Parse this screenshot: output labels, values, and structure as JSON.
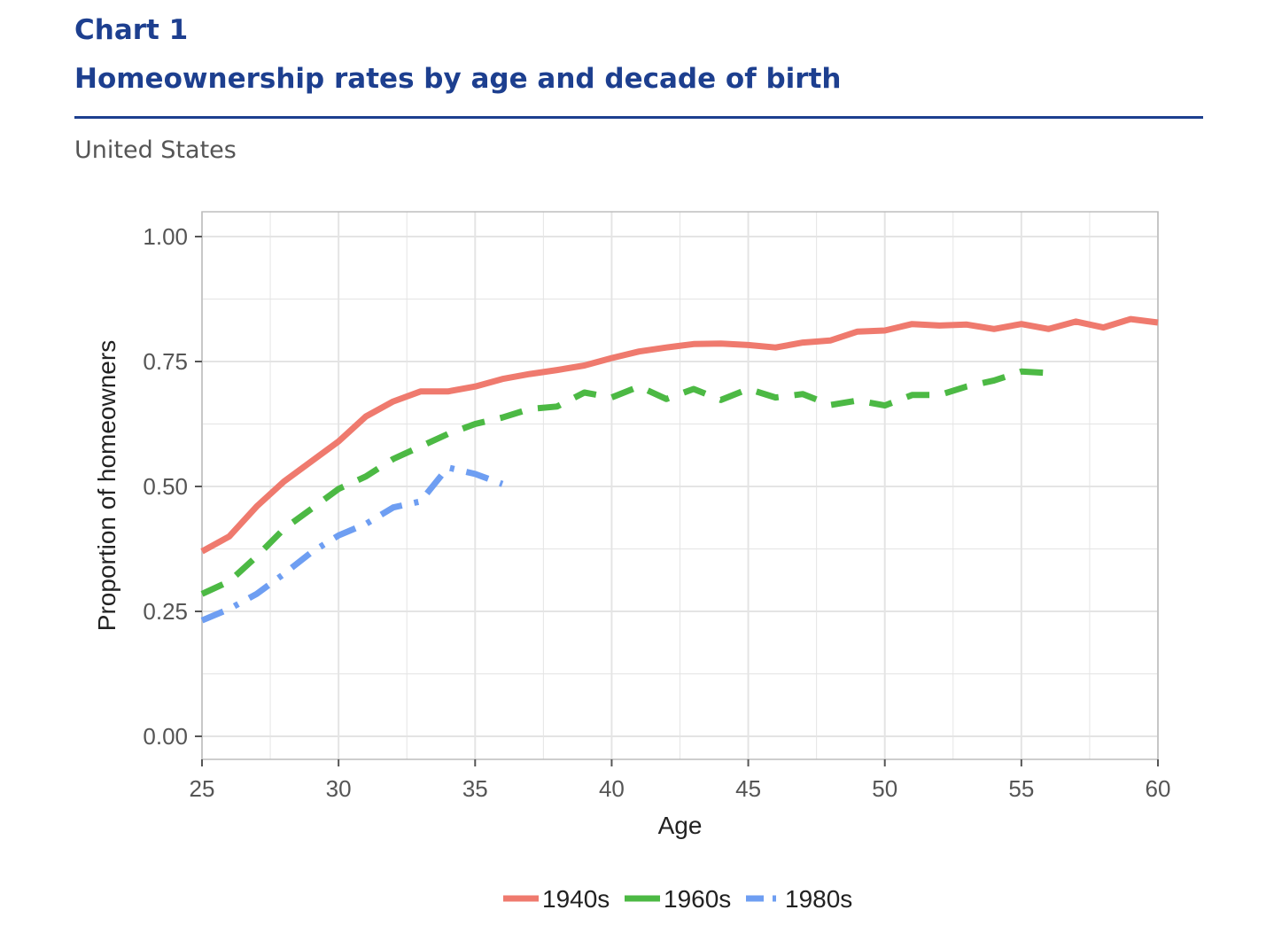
{
  "header": {
    "label": "Chart 1",
    "title": "Homeownership rates by age and decade of birth",
    "subtitle": "United States"
  },
  "colors": {
    "header_blue": "#1d3f8f",
    "series_1940s": "#ef7a6e",
    "series_1960s": "#4cb944",
    "series_1980s": "#6e9ef2",
    "grid": "#e4e4e4"
  },
  "chart_data": {
    "type": "line",
    "xlabel": "Age",
    "ylabel": "Proportion of homeowners",
    "xlim": [
      25,
      60
    ],
    "ylim": [
      0,
      1
    ],
    "xticks": [
      25,
      30,
      35,
      40,
      45,
      50,
      55,
      60
    ],
    "yticks": [
      0,
      0.25,
      0.5,
      0.75,
      1
    ],
    "ytick_labels": [
      "0.00",
      "0.25",
      "0.50",
      "0.75",
      "1.00"
    ],
    "grid": true,
    "legend_position": "bottom",
    "series": [
      {
        "name": "1940s",
        "line_style": "solid",
        "x": [
          25,
          26,
          27,
          28,
          29,
          30,
          31,
          32,
          33,
          34,
          35,
          36,
          37,
          38,
          39,
          40,
          41,
          42,
          43,
          44,
          45,
          46,
          47,
          48,
          49,
          50,
          51,
          52,
          53,
          54,
          55,
          56,
          57,
          58,
          59,
          60
        ],
        "y": [
          0.37,
          0.4,
          0.46,
          0.51,
          0.55,
          0.59,
          0.64,
          0.67,
          0.69,
          0.69,
          0.7,
          0.715,
          0.725,
          0.733,
          0.742,
          0.757,
          0.77,
          0.778,
          0.785,
          0.786,
          0.783,
          0.778,
          0.788,
          0.792,
          0.81,
          0.812,
          0.825,
          0.822,
          0.824,
          0.815,
          0.825,
          0.815,
          0.83,
          0.818,
          0.835,
          0.828
        ]
      },
      {
        "name": "1960s",
        "line_style": "dashed",
        "x": [
          25,
          26,
          27,
          28,
          29,
          30,
          31,
          32,
          33,
          34,
          35,
          36,
          37,
          38,
          39,
          40,
          41,
          42,
          43,
          44,
          45,
          46,
          47,
          48,
          49,
          50,
          51,
          52,
          53,
          54,
          55,
          56
        ],
        "y": [
          0.285,
          0.31,
          0.36,
          0.415,
          0.455,
          0.495,
          0.52,
          0.555,
          0.58,
          0.605,
          0.625,
          0.638,
          0.655,
          0.66,
          0.688,
          0.678,
          0.7,
          0.675,
          0.695,
          0.673,
          0.695,
          0.678,
          0.685,
          0.663,
          0.672,
          0.662,
          0.683,
          0.683,
          0.7,
          0.712,
          0.73,
          0.727
        ]
      },
      {
        "name": "1980s",
        "line_style": "dotdash",
        "x": [
          25,
          26,
          27,
          28,
          29,
          30,
          31,
          32,
          33,
          34,
          35,
          36
        ],
        "y": [
          0.232,
          0.255,
          0.285,
          0.325,
          0.368,
          0.402,
          0.425,
          0.458,
          0.47,
          0.538,
          0.525,
          0.505
        ]
      }
    ]
  }
}
